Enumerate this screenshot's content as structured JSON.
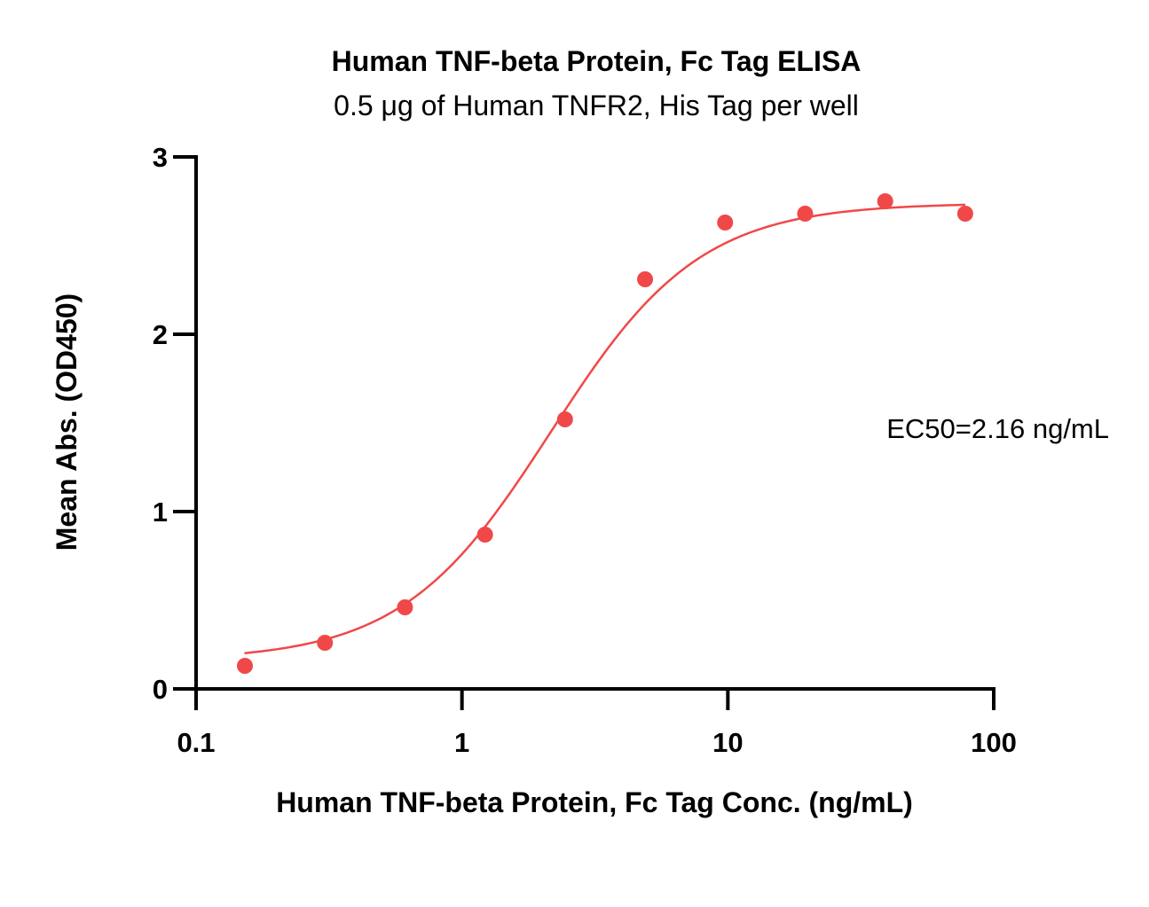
{
  "chart_data": {
    "type": "scatter",
    "title": "Human TNF-beta Protein, Fc Tag ELISA",
    "subtitle": "0.5 μg of Human TNFR2, His Tag per well",
    "xlabel": "Human TNF-beta Protein, Fc Tag Conc. (ng/mL)",
    "ylabel": "Mean Abs. (OD450)",
    "x_scale": "log",
    "xlim": [
      0.1,
      100
    ],
    "ylim": [
      0,
      3
    ],
    "x_ticks": [
      0.1,
      1,
      10,
      100
    ],
    "x_tick_labels": [
      "0.1",
      "1",
      "10",
      "100"
    ],
    "y_ticks": [
      0,
      1,
      2,
      3
    ],
    "y_tick_labels": [
      "0",
      "1",
      "2",
      "3"
    ],
    "grid": false,
    "annotation": "EC50=2.16 ng/mL",
    "colors": {
      "series": "#f04848",
      "axis": "#000000"
    },
    "series": [
      {
        "x": [
          0.1526,
          0.3052,
          0.6104,
          1.221,
          2.441,
          4.883,
          9.766,
          19.53,
          39.06,
          78.13
        ],
        "y": [
          0.13,
          0.26,
          0.46,
          0.87,
          1.52,
          2.31,
          2.63,
          2.68,
          2.75,
          2.68
        ]
      }
    ],
    "fit": {
      "model": "4PL",
      "bottom": 0.16,
      "top": 2.74,
      "ec50": 2.16,
      "hill": 1.55,
      "x_range": [
        0.152,
        78.13
      ]
    }
  }
}
